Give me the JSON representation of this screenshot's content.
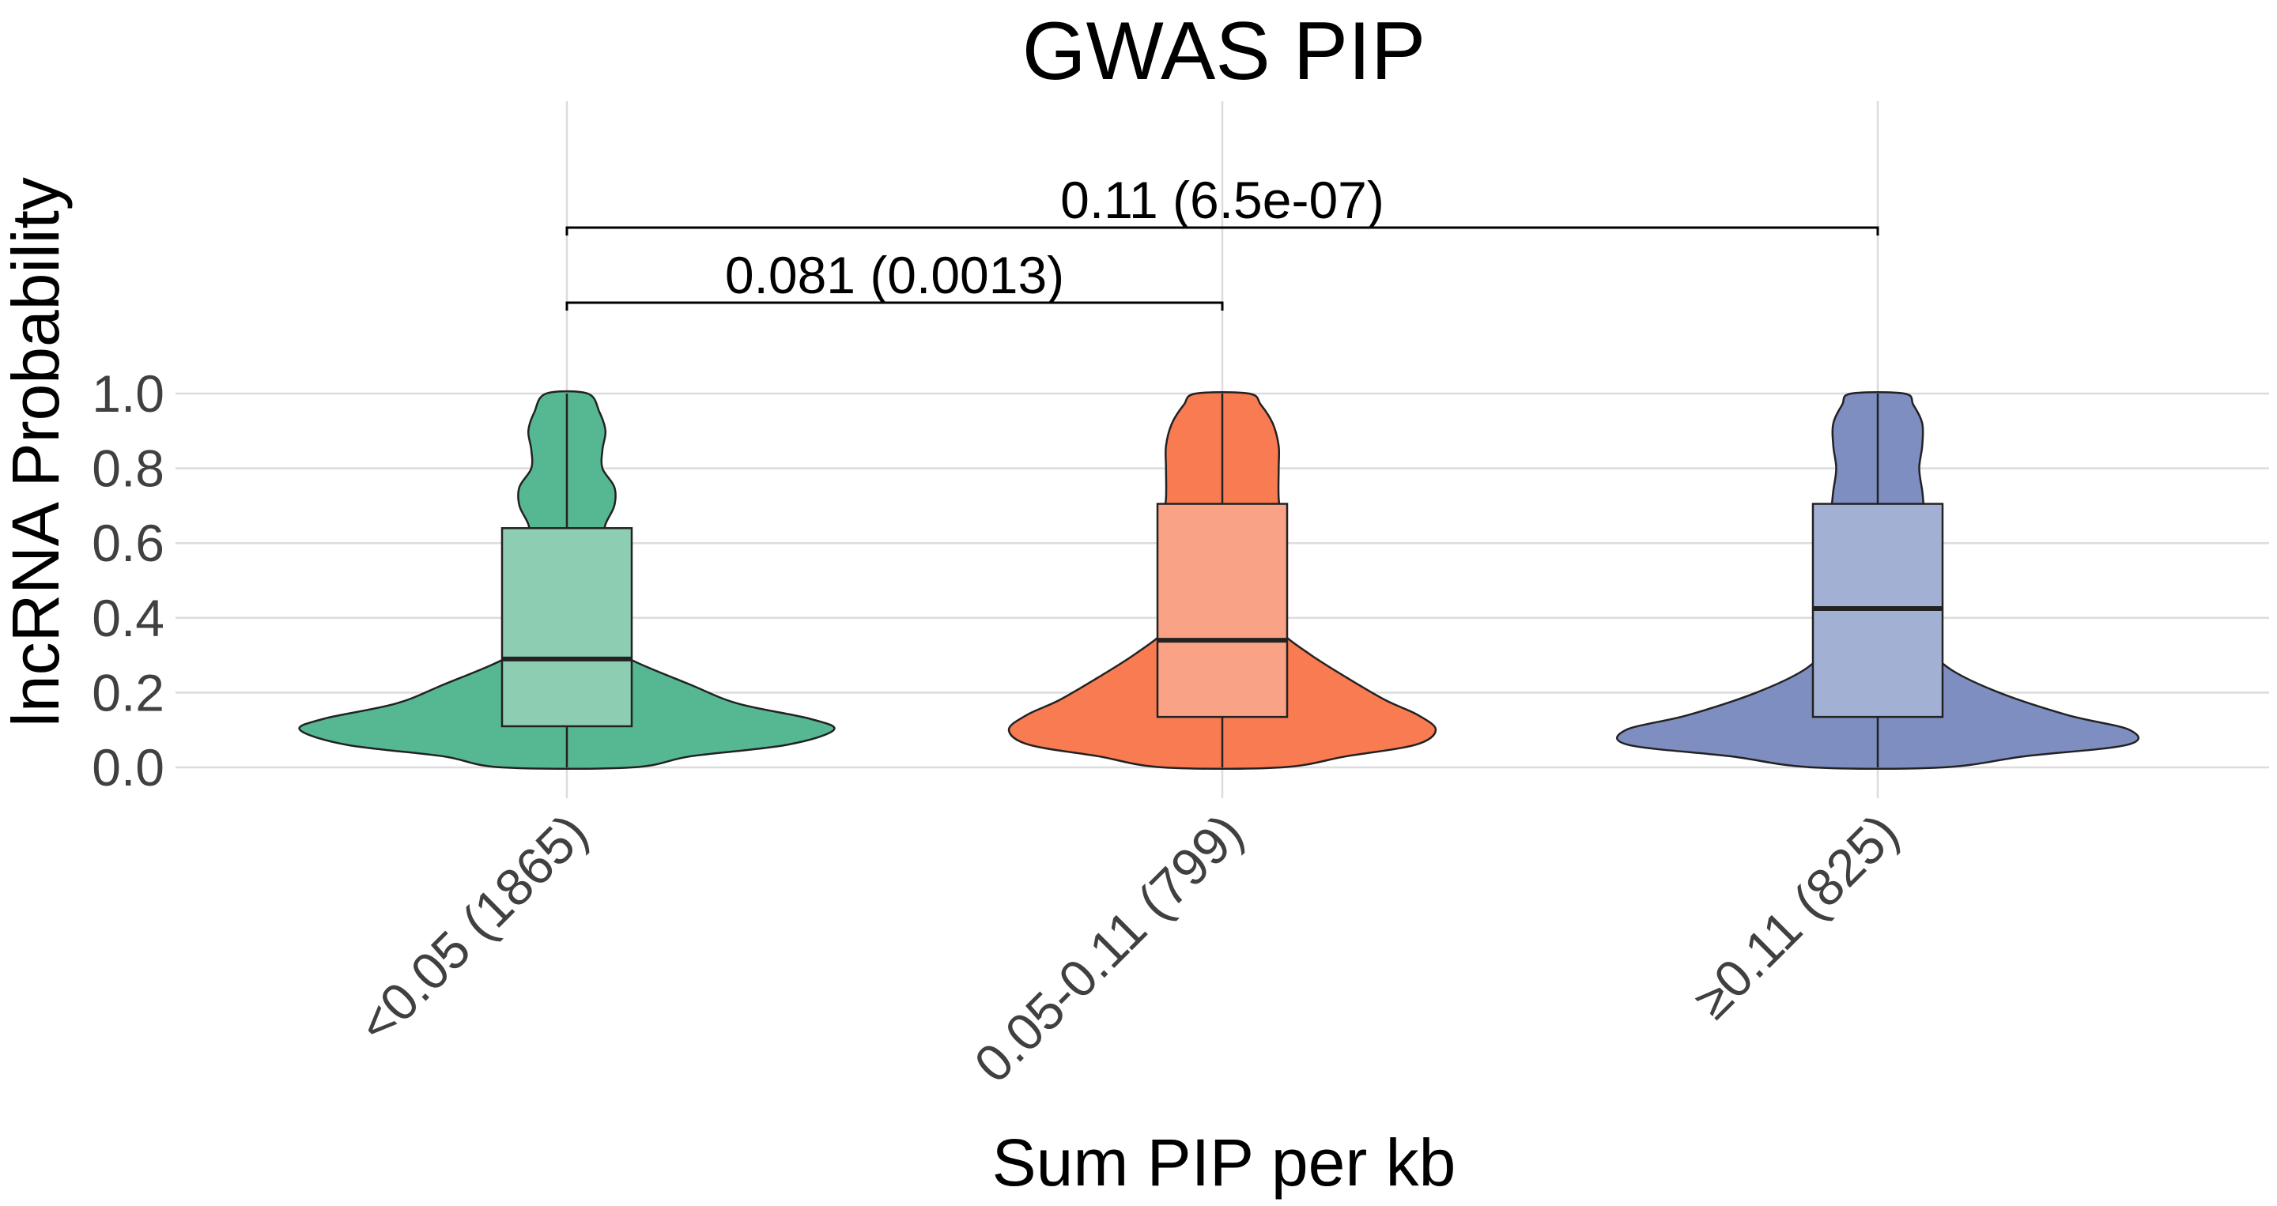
{
  "chart_data": {
    "type": "violin",
    "title": "GWAS PIP",
    "xlabel": "Sum PIP per kb",
    "ylabel": "lncRNA Probability",
    "ylim": [
      0,
      1
    ],
    "yticks": [
      "0.0",
      "0.2",
      "0.4",
      "0.6",
      "0.8",
      "1.0"
    ],
    "grid": true,
    "categories": [
      "<0.05 (1865)",
      "0.05-0.11 (799)",
      "≥0.11 (825)"
    ],
    "groups": [
      {
        "label": "<0.05 (1865)",
        "color": "#56b892",
        "box_color": "#8dcdb2",
        "box": {
          "min": 0.0,
          "q1": 0.11,
          "median": 0.29,
          "q3": 0.64,
          "max": 1.0
        },
        "density": [
          [
            0.0,
            0.22
          ],
          [
            0.03,
            0.42
          ],
          [
            0.06,
            0.74
          ],
          [
            0.1,
            0.9
          ],
          [
            0.13,
            0.82
          ],
          [
            0.17,
            0.58
          ],
          [
            0.22,
            0.42
          ],
          [
            0.3,
            0.19
          ],
          [
            0.35,
            0.18
          ],
          [
            0.4,
            0.17
          ],
          [
            0.45,
            0.15
          ],
          [
            0.5,
            0.13
          ],
          [
            0.55,
            0.12
          ],
          [
            0.6,
            0.12
          ],
          [
            0.65,
            0.13
          ],
          [
            0.7,
            0.16
          ],
          [
            0.75,
            0.16
          ],
          [
            0.8,
            0.12
          ],
          [
            0.85,
            0.12
          ],
          [
            0.9,
            0.13
          ],
          [
            0.95,
            0.11
          ],
          [
            1.0,
            0.07
          ]
        ]
      },
      {
        "label": "0.05-0.11 (799)",
        "color": "#f97b52",
        "box_color": "#f9a285",
        "box": {
          "min": 0.0,
          "q1": 0.135,
          "median": 0.34,
          "q3": 0.705,
          "max": 1.0
        },
        "density": [
          [
            0.0,
            0.2
          ],
          [
            0.03,
            0.42
          ],
          [
            0.06,
            0.65
          ],
          [
            0.1,
            0.72
          ],
          [
            0.14,
            0.66
          ],
          [
            0.18,
            0.55
          ],
          [
            0.24,
            0.42
          ],
          [
            0.3,
            0.3
          ],
          [
            0.36,
            0.2
          ],
          [
            0.42,
            0.15
          ],
          [
            0.5,
            0.15
          ],
          [
            0.55,
            0.17
          ],
          [
            0.6,
            0.19
          ],
          [
            0.66,
            0.2
          ],
          [
            0.72,
            0.19
          ],
          [
            0.8,
            0.19
          ],
          [
            0.86,
            0.19
          ],
          [
            0.92,
            0.17
          ],
          [
            0.97,
            0.13
          ],
          [
            1.0,
            0.09
          ]
        ]
      },
      {
        "label": "≥0.11 (825)",
        "color": "#7e8ec1",
        "box_color": "#a2b0d4",
        "box": {
          "min": 0.0,
          "q1": 0.135,
          "median": 0.425,
          "q3": 0.705,
          "max": 1.0
        },
        "density": [
          [
            0.0,
            0.22
          ],
          [
            0.03,
            0.5
          ],
          [
            0.06,
            0.84
          ],
          [
            0.1,
            0.85
          ],
          [
            0.14,
            0.64
          ],
          [
            0.2,
            0.41
          ],
          [
            0.26,
            0.25
          ],
          [
            0.32,
            0.17
          ],
          [
            0.37,
            0.15
          ],
          [
            0.44,
            0.15
          ],
          [
            0.5,
            0.17
          ],
          [
            0.56,
            0.19
          ],
          [
            0.62,
            0.19
          ],
          [
            0.68,
            0.16
          ],
          [
            0.74,
            0.15
          ],
          [
            0.8,
            0.14
          ],
          [
            0.86,
            0.15
          ],
          [
            0.92,
            0.15
          ],
          [
            0.97,
            0.12
          ],
          [
            1.0,
            0.09
          ]
        ]
      }
    ],
    "comparisons": [
      {
        "from": 0,
        "to": 1,
        "label": "0.081 (0.0013)",
        "level": 1
      },
      {
        "from": 0,
        "to": 2,
        "label": "0.11 (6.5e-07)",
        "level": 2
      }
    ]
  }
}
